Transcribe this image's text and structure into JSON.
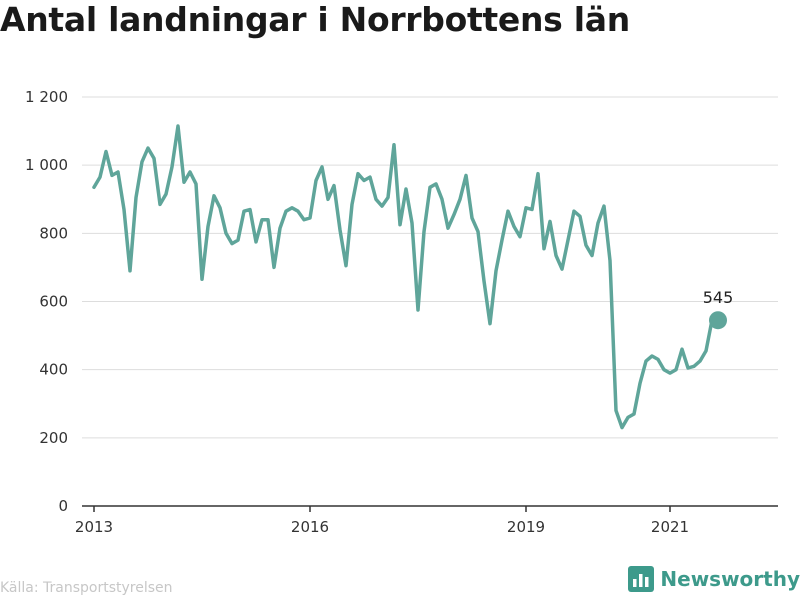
{
  "header": {
    "title": "Antal landningar i Norrbottens län"
  },
  "footer": {
    "source": "Källa: Transportstyrelsen",
    "brand": "Newsworthy"
  },
  "colors": {
    "line": "#5fa59a",
    "grid": "#dddddd",
    "axis": "#333333",
    "brand": "#3d9a8b"
  },
  "icons": {
    "brand": "newsworthy-logo-icon"
  },
  "chart_data": {
    "type": "line",
    "title": "Antal landningar i Norrbottens län",
    "xlabel": "",
    "ylabel": "",
    "ylim": [
      0,
      1200
    ],
    "yticks": [
      0,
      200,
      400,
      600,
      800,
      1000,
      1200
    ],
    "ytick_labels": [
      "0",
      "200",
      "400",
      "600",
      "800",
      "1 000",
      "1 200"
    ],
    "xticks": [
      {
        "date": "2013-01",
        "label": "2013"
      },
      {
        "date": "2016-01",
        "label": "2016"
      },
      {
        "date": "2019-01",
        "label": "2019"
      },
      {
        "date": "2021-01",
        "label": "2021"
      }
    ],
    "x_range": [
      "2012-11",
      "2022-07"
    ],
    "grid": true,
    "last_point_label": "545",
    "series": [
      {
        "x": [
          "2013-01",
          "2013-02",
          "2013-03",
          "2013-04",
          "2013-05",
          "2013-06",
          "2013-07",
          "2013-08",
          "2013-09",
          "2013-10",
          "2013-11",
          "2013-12",
          "2014-01",
          "2014-02",
          "2014-03",
          "2014-04",
          "2014-05",
          "2014-06",
          "2014-07",
          "2014-08",
          "2014-09",
          "2014-10",
          "2014-11",
          "2014-12",
          "2015-01",
          "2015-02",
          "2015-03",
          "2015-04",
          "2015-05",
          "2015-06",
          "2015-07",
          "2015-08",
          "2015-09",
          "2015-10",
          "2015-11",
          "2015-12",
          "2016-01",
          "2016-02",
          "2016-03",
          "2016-04",
          "2016-05",
          "2016-06",
          "2016-07",
          "2016-08",
          "2016-09",
          "2016-10",
          "2016-11",
          "2016-12",
          "2017-01",
          "2017-02",
          "2017-03",
          "2017-04",
          "2017-05",
          "2017-06",
          "2017-07",
          "2017-08",
          "2017-09",
          "2017-10",
          "2017-11",
          "2017-12",
          "2018-01",
          "2018-02",
          "2018-03",
          "2018-04",
          "2018-05",
          "2018-06",
          "2018-07",
          "2018-08",
          "2018-09",
          "2018-10",
          "2018-11",
          "2018-12",
          "2019-01",
          "2019-02",
          "2019-03",
          "2019-04",
          "2019-05",
          "2019-06",
          "2019-07",
          "2019-08",
          "2019-09",
          "2019-10",
          "2019-11",
          "2019-12",
          "2020-01",
          "2020-02",
          "2020-03",
          "2020-04",
          "2020-05",
          "2020-06",
          "2020-07",
          "2020-08",
          "2020-09",
          "2020-10",
          "2020-11",
          "2020-12",
          "2021-01",
          "2021-02",
          "2021-03",
          "2021-04",
          "2021-05",
          "2021-06",
          "2021-07",
          "2021-08",
          "2021-09"
        ],
        "values": [
          935,
          965,
          1040,
          970,
          980,
          870,
          690,
          905,
          1010,
          1050,
          1020,
          885,
          915,
          995,
          1115,
          950,
          980,
          945,
          665,
          820,
          910,
          875,
          800,
          770,
          780,
          865,
          870,
          775,
          840,
          840,
          700,
          815,
          865,
          875,
          865,
          840,
          845,
          955,
          995,
          900,
          940,
          810,
          705,
          885,
          975,
          955,
          965,
          900,
          880,
          905,
          1060,
          825,
          930,
          830,
          575,
          805,
          935,
          945,
          900,
          815,
          855,
          900,
          970,
          845,
          805,
          660,
          535,
          690,
          780,
          865,
          820,
          790,
          875,
          870,
          975,
          755,
          835,
          735,
          695,
          780,
          865,
          850,
          765,
          735,
          830,
          880,
          720,
          280,
          230,
          260,
          270,
          360,
          425,
          440,
          430,
          400,
          390,
          400,
          460,
          405,
          410,
          425,
          455,
          545,
          545
        ]
      }
    ]
  }
}
